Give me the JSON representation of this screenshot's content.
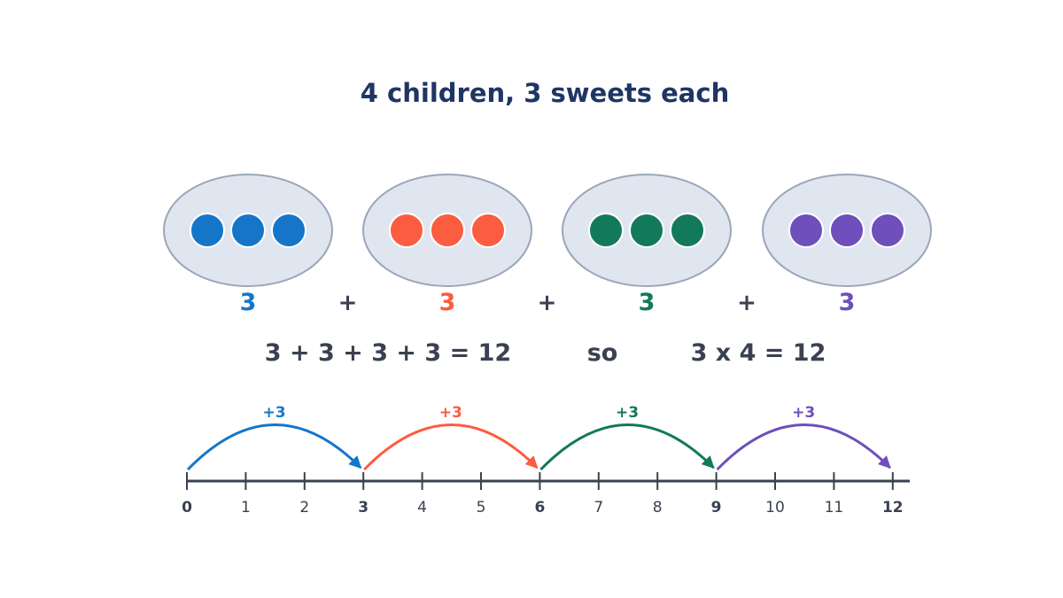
{
  "title": "4 children, 3 sweets each",
  "colors": {
    "text": "#3a4150",
    "title": "#1f3564",
    "group_fill": "#e0e6f0",
    "group_stroke": "#9aa6ba"
  },
  "groups": [
    {
      "count": "3",
      "color": "#1576c9",
      "sweets": 3
    },
    {
      "count": "3",
      "color": "#fc5c3f",
      "sweets": 3
    },
    {
      "count": "3",
      "color": "#127a5b",
      "sweets": 3
    },
    {
      "count": "3",
      "color": "#6e4fbb",
      "sweets": 3
    }
  ],
  "plus_sign": "+",
  "equation": {
    "addition": "3 + 3 + 3 + 3 = 12",
    "connector": "so",
    "multiplication": "3 x 4 = 12"
  },
  "number_line": {
    "min": 0,
    "max": 12,
    "ticks": [
      "0",
      "1",
      "2",
      "3",
      "4",
      "5",
      "6",
      "7",
      "8",
      "9",
      "10",
      "11",
      "12"
    ],
    "major_ticks": [
      0,
      3,
      6,
      9,
      12
    ],
    "jumps": [
      {
        "from": 0,
        "to": 3,
        "label": "+3",
        "color": "#1576c9"
      },
      {
        "from": 3,
        "to": 6,
        "label": "+3",
        "color": "#fc5c3f"
      },
      {
        "from": 6,
        "to": 9,
        "label": "+3",
        "color": "#127a5b"
      },
      {
        "from": 9,
        "to": 12,
        "label": "+3",
        "color": "#6e4fbb"
      }
    ]
  }
}
